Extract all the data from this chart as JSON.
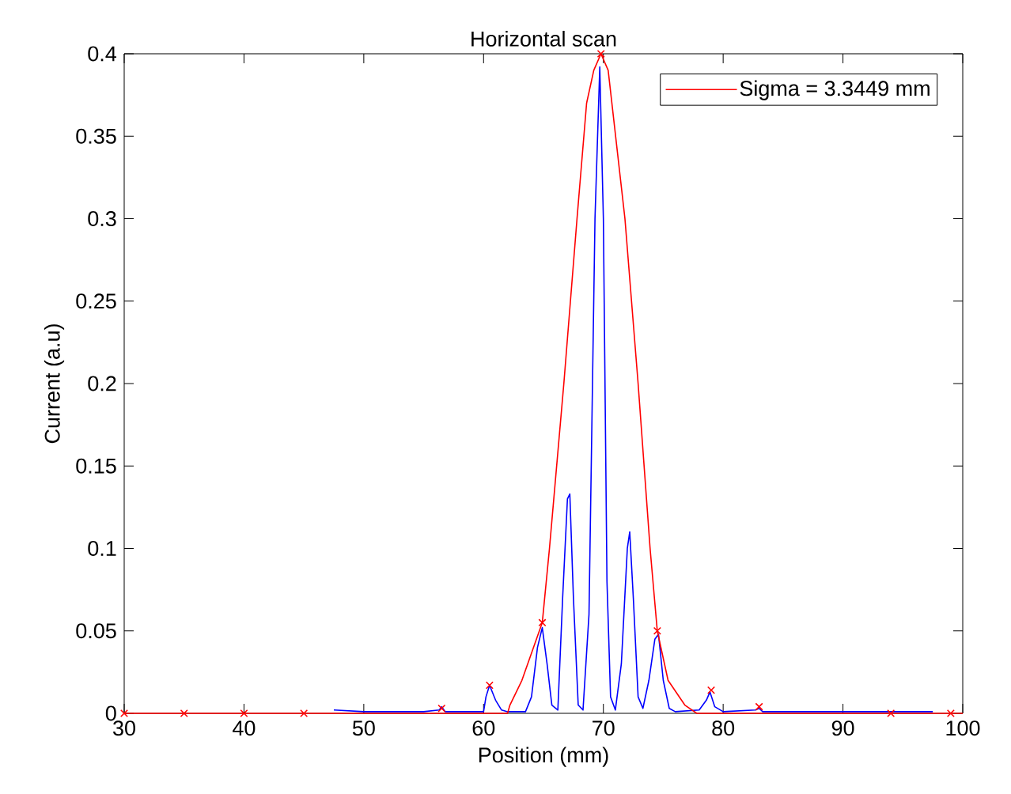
{
  "chart_data": {
    "type": "line",
    "title": "Horizontal scan",
    "xlabel": "Position (mm)",
    "ylabel": "Current (a.u)",
    "xlim": [
      30,
      100
    ],
    "ylim": [
      0,
      0.4
    ],
    "xticks": [
      30,
      40,
      50,
      60,
      70,
      80,
      90,
      100
    ],
    "yticks": [
      0,
      0.05,
      0.1,
      0.15,
      0.2,
      0.25,
      0.3,
      0.35,
      0.4
    ],
    "grid": false,
    "legend": "top right",
    "line_style": "solid",
    "series": [
      {
        "color": "#0000ff",
        "marker": "none",
        "x": [
          47.5,
          50,
          55,
          56.3,
          56.5,
          56.8,
          60,
          60.2,
          60.5,
          61,
          61.5,
          62,
          63.5,
          64,
          64.5,
          64.9,
          65.3,
          65.7,
          66.2,
          66.6,
          67.0,
          67.2,
          67.5,
          67.9,
          68.3,
          68.8,
          69.3,
          69.7,
          70.0,
          70.3,
          70.6,
          71.0,
          71.5,
          72.0,
          72.2,
          72.5,
          72.9,
          73.3,
          73.8,
          74.3,
          74.6,
          75.0,
          75.5,
          76,
          78,
          78.6,
          78.9,
          79.3,
          80,
          82.7,
          83,
          83.3,
          90,
          95,
          97.5
        ],
        "values": [
          0.002,
          0.001,
          0.001,
          0.002,
          0.004,
          0.001,
          0.001,
          0.01,
          0.017,
          0.008,
          0.002,
          0.001,
          0.001,
          0.01,
          0.04,
          0.052,
          0.03,
          0.005,
          0.002,
          0.07,
          0.13,
          0.133,
          0.07,
          0.005,
          0.002,
          0.06,
          0.3,
          0.392,
          0.3,
          0.08,
          0.01,
          0.002,
          0.03,
          0.1,
          0.11,
          0.07,
          0.01,
          0.003,
          0.02,
          0.045,
          0.048,
          0.02,
          0.003,
          0.001,
          0.002,
          0.008,
          0.013,
          0.004,
          0.001,
          0.002,
          0.003,
          0.001,
          0.001,
          0.001,
          0.001
        ]
      },
      {
        "name": "Sigma = 3.3449 mm",
        "color": "#ff0000",
        "marker": "none",
        "x": [
          30,
          62.0,
          62.2,
          63.2,
          64.9,
          65.5,
          66.7,
          67.8,
          68.6,
          69.2,
          69.8,
          70.4,
          71.8,
          72.9,
          73.9,
          74.5,
          75.4,
          76.8,
          77.8,
          100
        ],
        "values": [
          0,
          0,
          0.005,
          0.02,
          0.055,
          0.1,
          0.2,
          0.3,
          0.37,
          0.39,
          0.4,
          0.39,
          0.3,
          0.2,
          0.1,
          0.05,
          0.02,
          0.005,
          0,
          0
        ]
      },
      {
        "type": "scatter",
        "color": "#ff0000",
        "marker": "cross",
        "x": [
          30,
          35,
          40,
          45,
          56.5,
          60.5,
          64.9,
          69.8,
          74.5,
          79,
          83,
          94,
          99
        ],
        "values": [
          0,
          0,
          0,
          0,
          0.003,
          0.017,
          0.055,
          0.4,
          0.05,
          0.014,
          0.004,
          0,
          0
        ]
      }
    ]
  }
}
